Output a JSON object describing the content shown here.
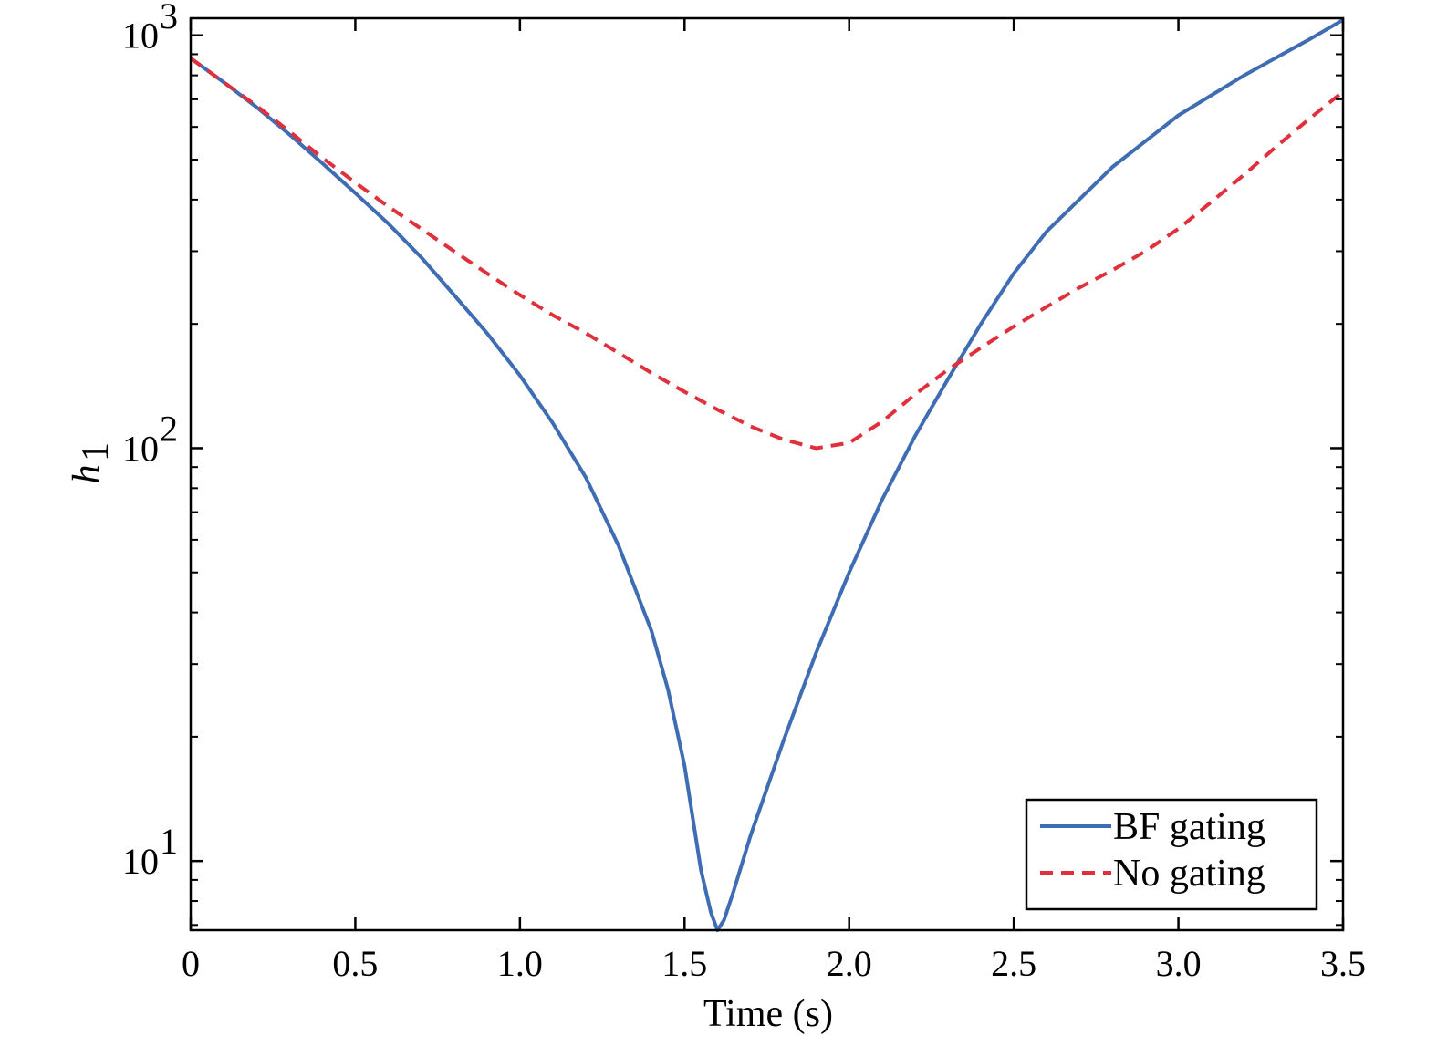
{
  "chart_data": {
    "type": "line",
    "title": "",
    "xlabel": "Time (s)",
    "ylabel_main": "h",
    "ylabel_sub": "1",
    "xlim": [
      0,
      3.5
    ],
    "ylim": [
      6.8,
      1100
    ],
    "yscale": "log",
    "grid": false,
    "legend_position": "bottom-right",
    "x_ticks": [
      {
        "value": 0,
        "label": "0"
      },
      {
        "value": 0.5,
        "label": "0.5"
      },
      {
        "value": 1.0,
        "label": "1.0"
      },
      {
        "value": 1.5,
        "label": "1.5"
      },
      {
        "value": 2.0,
        "label": "2.0"
      },
      {
        "value": 2.5,
        "label": "2.5"
      },
      {
        "value": 3.0,
        "label": "3.0"
      },
      {
        "value": 3.5,
        "label": "3.5"
      }
    ],
    "y_ticks": [
      {
        "value": 10,
        "base": "10",
        "exp": "1"
      },
      {
        "value": 100,
        "base": "10",
        "exp": "2"
      },
      {
        "value": 1000,
        "base": "10",
        "exp": "3"
      }
    ],
    "series": [
      {
        "name": "BF gating",
        "color": "#3f6db4",
        "style": "solid",
        "x": [
          0,
          0.1,
          0.2,
          0.3,
          0.4,
          0.5,
          0.6,
          0.7,
          0.8,
          0.9,
          1.0,
          1.1,
          1.2,
          1.3,
          1.4,
          1.45,
          1.5,
          1.55,
          1.58,
          1.6,
          1.62,
          1.65,
          1.7,
          1.8,
          1.9,
          2.0,
          2.1,
          2.2,
          2.3,
          2.4,
          2.5,
          2.6,
          2.8,
          3.0,
          3.2,
          3.4,
          3.5
        ],
        "y": [
          880,
          770,
          670,
          575,
          490,
          415,
          350,
          290,
          235,
          190,
          150,
          115,
          85,
          58,
          36,
          26,
          17,
          9.5,
          7.5,
          6.8,
          7.2,
          8.5,
          11.5,
          19.5,
          32,
          50,
          75,
          107,
          147,
          200,
          265,
          335,
          480,
          640,
          800,
          980,
          1090
        ]
      },
      {
        "name": "No gating",
        "color": "#e0303b",
        "style": "dashed",
        "x": [
          0,
          0.1,
          0.2,
          0.3,
          0.4,
          0.5,
          0.6,
          0.7,
          0.8,
          0.9,
          1.0,
          1.1,
          1.2,
          1.3,
          1.4,
          1.5,
          1.6,
          1.7,
          1.8,
          1.9,
          2.0,
          2.1,
          2.2,
          2.3,
          2.4,
          2.5,
          2.6,
          2.7,
          2.8,
          2.9,
          3.0,
          3.1,
          3.2,
          3.3,
          3.4,
          3.5
        ],
        "y": [
          880,
          770,
          675,
          585,
          505,
          440,
          385,
          340,
          300,
          265,
          235,
          210,
          190,
          170,
          152,
          137,
          124,
          113,
          105,
          100,
          103,
          116,
          135,
          155,
          175,
          197,
          220,
          245,
          270,
          300,
          340,
          395,
          460,
          540,
          630,
          730
        ]
      }
    ]
  }
}
